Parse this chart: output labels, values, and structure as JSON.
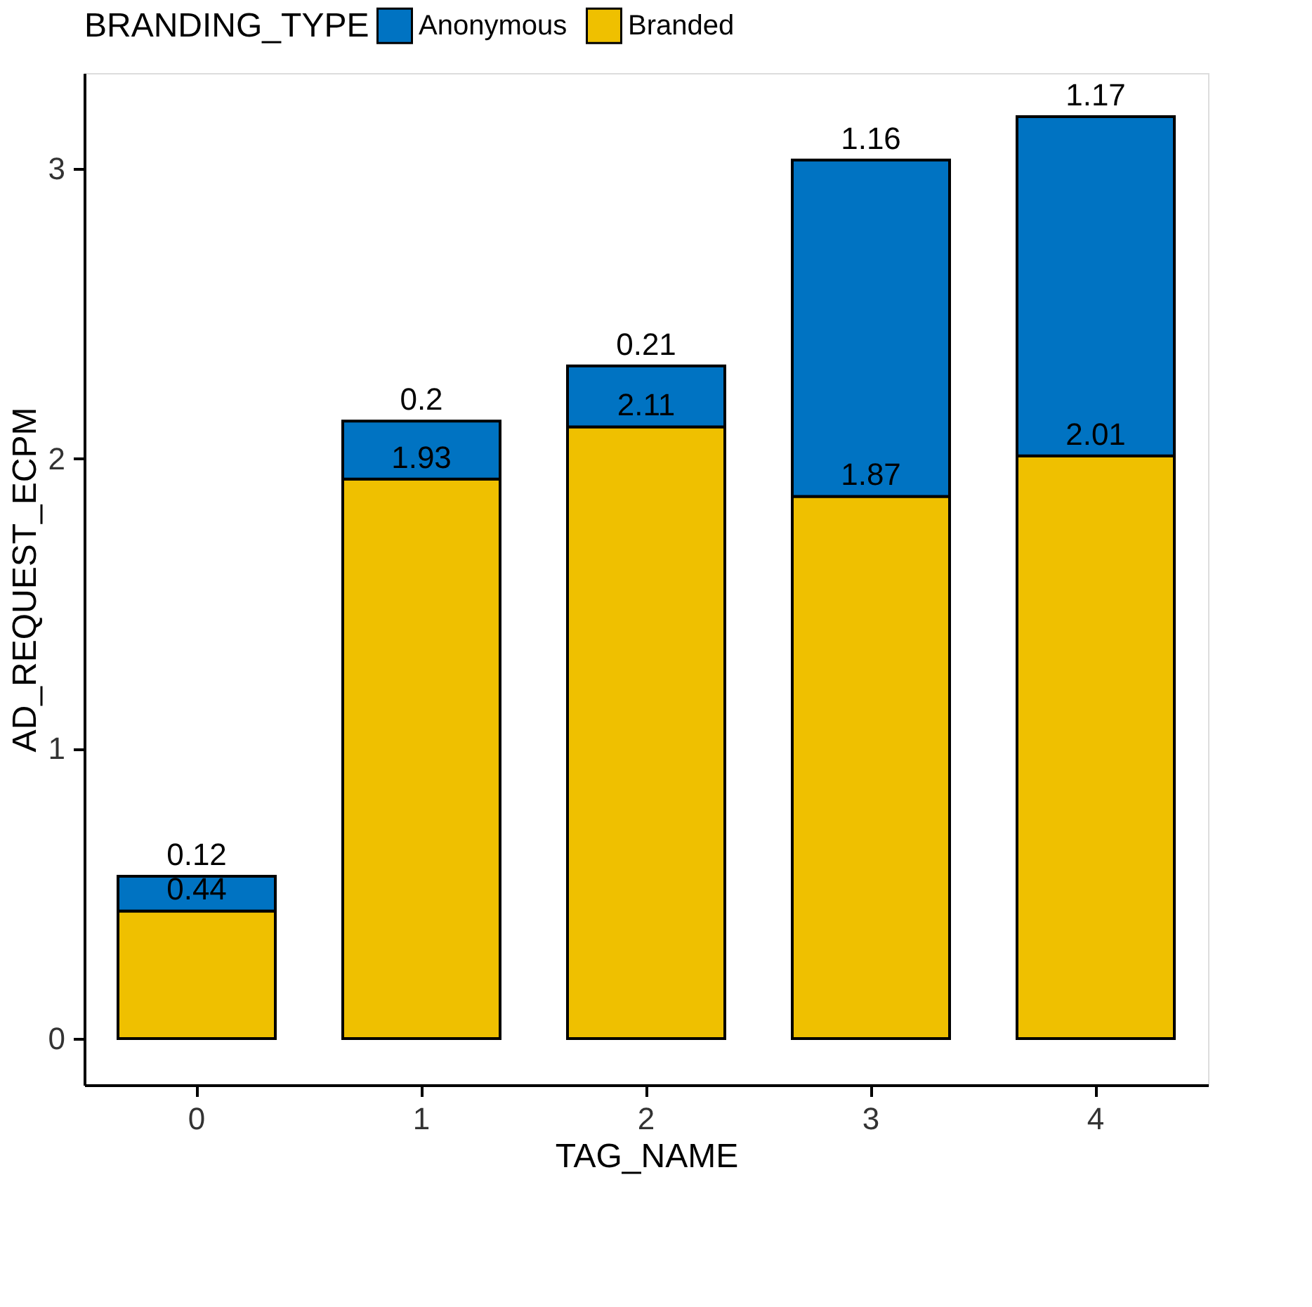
{
  "chart_data": {
    "type": "bar",
    "stacked": true,
    "xlabel": "TAG_NAME",
    "ylabel": "AD_REQUEST_ECPM",
    "legend_title": "BRANDING_TYPE",
    "legend": "top",
    "categories": [
      "0",
      "1",
      "2",
      "3",
      "4"
    ],
    "series": [
      {
        "name": "Branded",
        "color": "#efc000",
        "values": [
          0.44,
          1.93,
          2.11,
          1.87,
          2.01
        ]
      },
      {
        "name": "Anonymous",
        "color": "#0073c2",
        "values": [
          0.12,
          0.2,
          0.21,
          1.16,
          1.17
        ]
      }
    ],
    "ylim": [
      -0.16,
      3.33
    ],
    "yticks": [
      0,
      1,
      2,
      3
    ],
    "grid": false,
    "data_labels": true
  }
}
